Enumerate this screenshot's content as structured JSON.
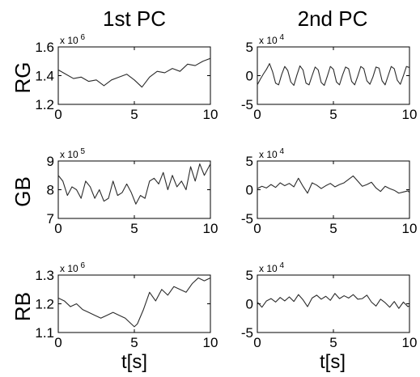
{
  "column_titles": [
    "1st PC",
    "2nd PC"
  ],
  "row_labels": [
    "RG",
    "GB",
    "RB"
  ],
  "xlabel": "t[s]",
  "colors": {
    "line": "#2b2b2b",
    "axis": "#000000",
    "background": "#ffffff"
  },
  "chart_data": [
    {
      "type": "line",
      "row": "RG",
      "column": "1st PC",
      "xlim": [
        0,
        10
      ],
      "ylim": [
        1.2,
        1.6
      ],
      "xticks": [
        "0",
        "5",
        "10"
      ],
      "yticks": [
        "1.2",
        "1.4",
        "1.6"
      ],
      "exponent_label": "x 10^6",
      "series": [
        {
          "x": [
            0,
            0.5,
            1,
            1.5,
            2,
            2.5,
            3,
            3.5,
            4,
            4.5,
            5,
            5.5,
            6,
            6.5,
            7,
            7.5,
            8,
            8.5,
            9,
            9.5,
            10
          ],
          "values": [
            1.44,
            1.41,
            1.38,
            1.39,
            1.36,
            1.37,
            1.33,
            1.37,
            1.39,
            1.41,
            1.37,
            1.32,
            1.39,
            1.43,
            1.42,
            1.45,
            1.43,
            1.48,
            1.47,
            1.5,
            1.52
          ]
        }
      ]
    },
    {
      "type": "line",
      "row": "RG",
      "column": "2nd PC",
      "xlim": [
        0,
        10
      ],
      "ylim": [
        -5,
        5
      ],
      "xticks": [
        "0",
        "5",
        "10"
      ],
      "yticks": [
        "-5",
        "0",
        "5"
      ],
      "exponent_label": "x 10^4",
      "series": [
        {
          "x": [
            0,
            0.2,
            0.4,
            0.6,
            0.8,
            1,
            1.2,
            1.4,
            1.6,
            1.8,
            2,
            2.2,
            2.4,
            2.6,
            2.8,
            3,
            3.2,
            3.4,
            3.6,
            3.8,
            4,
            4.2,
            4.4,
            4.6,
            4.8,
            5,
            5.2,
            5.4,
            5.6,
            5.8,
            6,
            6.2,
            6.4,
            6.6,
            6.8,
            7,
            7.2,
            7.4,
            7.6,
            7.8,
            8,
            8.2,
            8.4,
            8.6,
            8.8,
            9,
            9.2,
            9.4,
            9.6,
            9.8,
            10
          ],
          "values": [
            -1.6,
            -0.6,
            0.3,
            1.1,
            2.1,
            0.7,
            -1.3,
            -1.6,
            0.2,
            1.6,
            0.9,
            -1.1,
            -1.7,
            0.1,
            1.7,
            1.0,
            -1.3,
            -1.6,
            0.0,
            1.5,
            1.0,
            -1.2,
            -1.7,
            -0.1,
            1.6,
            1.1,
            -1.1,
            -1.6,
            0.1,
            1.5,
            1.2,
            -1.0,
            -1.6,
            -0.1,
            1.6,
            1.2,
            -0.9,
            -1.5,
            -0.2,
            1.5,
            1.3,
            -0.9,
            -1.6,
            0.0,
            1.6,
            1.2,
            -0.8,
            -1.5,
            0.0,
            1.6,
            1.4
          ]
        }
      ]
    },
    {
      "type": "line",
      "row": "GB",
      "column": "1st PC",
      "xlim": [
        0,
        10
      ],
      "ylim": [
        7,
        9
      ],
      "xticks": [
        "0",
        "5",
        "10"
      ],
      "yticks": [
        "7",
        "8",
        "9"
      ],
      "exponent_label": "x 10^5",
      "series": [
        {
          "x": [
            0,
            0.3,
            0.6,
            0.9,
            1.2,
            1.5,
            1.8,
            2.1,
            2.4,
            2.7,
            3,
            3.3,
            3.6,
            3.9,
            4.2,
            4.5,
            4.8,
            5.1,
            5.4,
            5.7,
            6,
            6.3,
            6.6,
            6.9,
            7.2,
            7.5,
            7.8,
            8.1,
            8.4,
            8.7,
            9,
            9.3,
            9.6,
            9.9,
            10
          ],
          "values": [
            8.5,
            8.3,
            7.8,
            8.1,
            8.0,
            7.7,
            8.3,
            8.1,
            7.7,
            8.0,
            7.6,
            7.7,
            8.3,
            7.8,
            7.9,
            8.2,
            7.9,
            7.5,
            7.8,
            7.7,
            8.3,
            8.4,
            8.2,
            8.6,
            8.0,
            8.5,
            8.1,
            8.3,
            8.0,
            8.8,
            8.3,
            8.9,
            8.5,
            8.8,
            8.9
          ]
        }
      ]
    },
    {
      "type": "line",
      "row": "GB",
      "column": "2nd PC",
      "xlim": [
        0,
        10
      ],
      "ylim": [
        -5,
        5
      ],
      "xticks": [
        "0",
        "5",
        "10"
      ],
      "yticks": [
        "-5",
        "0",
        "5"
      ],
      "exponent_label": "x 10^4",
      "series": [
        {
          "x": [
            0,
            0.3,
            0.6,
            0.9,
            1.2,
            1.5,
            1.8,
            2.1,
            2.4,
            2.7,
            3,
            3.3,
            3.6,
            3.9,
            4.2,
            4.5,
            4.8,
            5.1,
            5.4,
            5.7,
            6,
            6.3,
            6.6,
            6.9,
            7.2,
            7.5,
            7.8,
            8.1,
            8.4,
            8.7,
            9,
            9.3,
            9.6,
            9.9,
            10
          ],
          "values": [
            0.2,
            0.6,
            0.3,
            0.9,
            0.4,
            1.2,
            0.7,
            1.1,
            0.5,
            2.0,
            0.6,
            -0.6,
            1.2,
            0.8,
            0.2,
            0.7,
            1.1,
            0.5,
            0.9,
            1.2,
            1.8,
            2.4,
            1.5,
            0.6,
            0.9,
            1.3,
            0.3,
            -0.3,
            0.6,
            0.2,
            -0.1,
            -0.6,
            -0.4,
            -0.2,
            -0.5
          ]
        }
      ]
    },
    {
      "type": "line",
      "row": "RB",
      "column": "1st PC",
      "xlim": [
        0,
        10
      ],
      "ylim": [
        1.1,
        1.3
      ],
      "xticks": [
        "0",
        "5",
        "10"
      ],
      "yticks": [
        "1.1",
        "1.2",
        "1.3"
      ],
      "exponent_label": "x 10^6",
      "series": [
        {
          "x": [
            0,
            0.4,
            0.8,
            1.2,
            1.6,
            2,
            2.4,
            2.8,
            3.2,
            3.6,
            4,
            4.4,
            4.8,
            5,
            5.2,
            5.6,
            6,
            6.4,
            6.8,
            7.2,
            7.6,
            8,
            8.4,
            8.8,
            9.2,
            9.6,
            10
          ],
          "values": [
            1.22,
            1.21,
            1.19,
            1.2,
            1.18,
            1.17,
            1.16,
            1.15,
            1.16,
            1.17,
            1.16,
            1.15,
            1.13,
            1.12,
            1.13,
            1.18,
            1.24,
            1.21,
            1.25,
            1.23,
            1.26,
            1.25,
            1.24,
            1.27,
            1.29,
            1.28,
            1.29
          ]
        }
      ]
    },
    {
      "type": "line",
      "row": "RB",
      "column": "2nd PC",
      "xlim": [
        0,
        10
      ],
      "ylim": [
        -5,
        5
      ],
      "xticks": [
        "0",
        "5",
        "10"
      ],
      "yticks": [
        "-5",
        "0",
        "5"
      ],
      "exponent_label": "x 10^4",
      "series": [
        {
          "x": [
            0,
            0.3,
            0.6,
            0.9,
            1.2,
            1.5,
            1.8,
            2.1,
            2.4,
            2.7,
            3,
            3.3,
            3.6,
            3.9,
            4.2,
            4.5,
            4.8,
            5.1,
            5.4,
            5.7,
            6,
            6.3,
            6.6,
            6.9,
            7.2,
            7.5,
            7.8,
            8.1,
            8.4,
            8.7,
            9,
            9.3,
            9.6,
            9.9,
            10
          ],
          "values": [
            0.3,
            -0.6,
            0.5,
            0.9,
            0.3,
            1.1,
            0.5,
            1.2,
            0.4,
            1.6,
            0.7,
            -0.5,
            1.0,
            1.5,
            0.8,
            1.3,
            0.6,
            1.8,
            0.9,
            1.4,
            1.0,
            1.6,
            0.8,
            0.9,
            1.5,
            0.3,
            -0.4,
            0.8,
            0.2,
            -0.6,
            0.4,
            -0.8,
            0.3,
            -0.5,
            -0.3
          ]
        }
      ]
    }
  ]
}
